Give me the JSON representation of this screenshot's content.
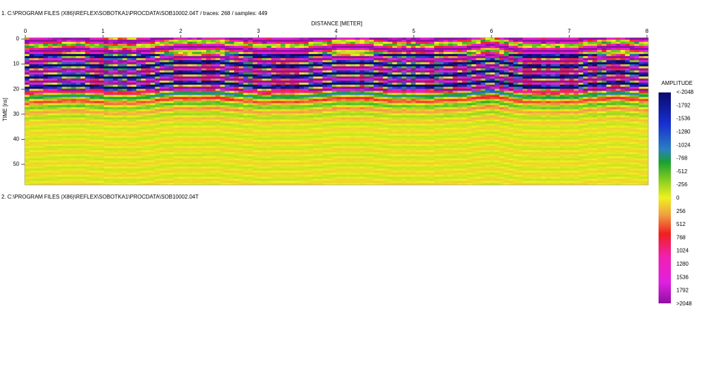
{
  "header": {
    "line1": "1. C:\\PROGRAM FILES (X86)\\REFLEX\\SOBOTKA1\\PROCDATA\\SOB10002.04T / traces: 268 / samples: 449",
    "line2": "2. C:\\PROGRAM FILES (X86)\\REFLEX\\SOBOTKA1\\PROCDATA\\SOB10002.04T"
  },
  "radargram": {
    "x_axis_label": "DISTANCE [METER]",
    "x_ticks": [
      "0",
      "1",
      "2",
      "3",
      "4",
      "5",
      "6",
      "7",
      "8"
    ],
    "y_axis_label": "TIME [ns]",
    "y_ticks": [
      "0",
      "10",
      "20",
      "30",
      "40",
      "50"
    ]
  },
  "colorbar": {
    "title": "AMPLITUDE",
    "labels": [
      "<-2048",
      "-1792",
      "-1536",
      "-1280",
      "-1024",
      "-768",
      "-512",
      "-256",
      "0",
      "256",
      "512",
      "768",
      "1024",
      "1280",
      "1536",
      "1792",
      ">2048"
    ]
  }
}
